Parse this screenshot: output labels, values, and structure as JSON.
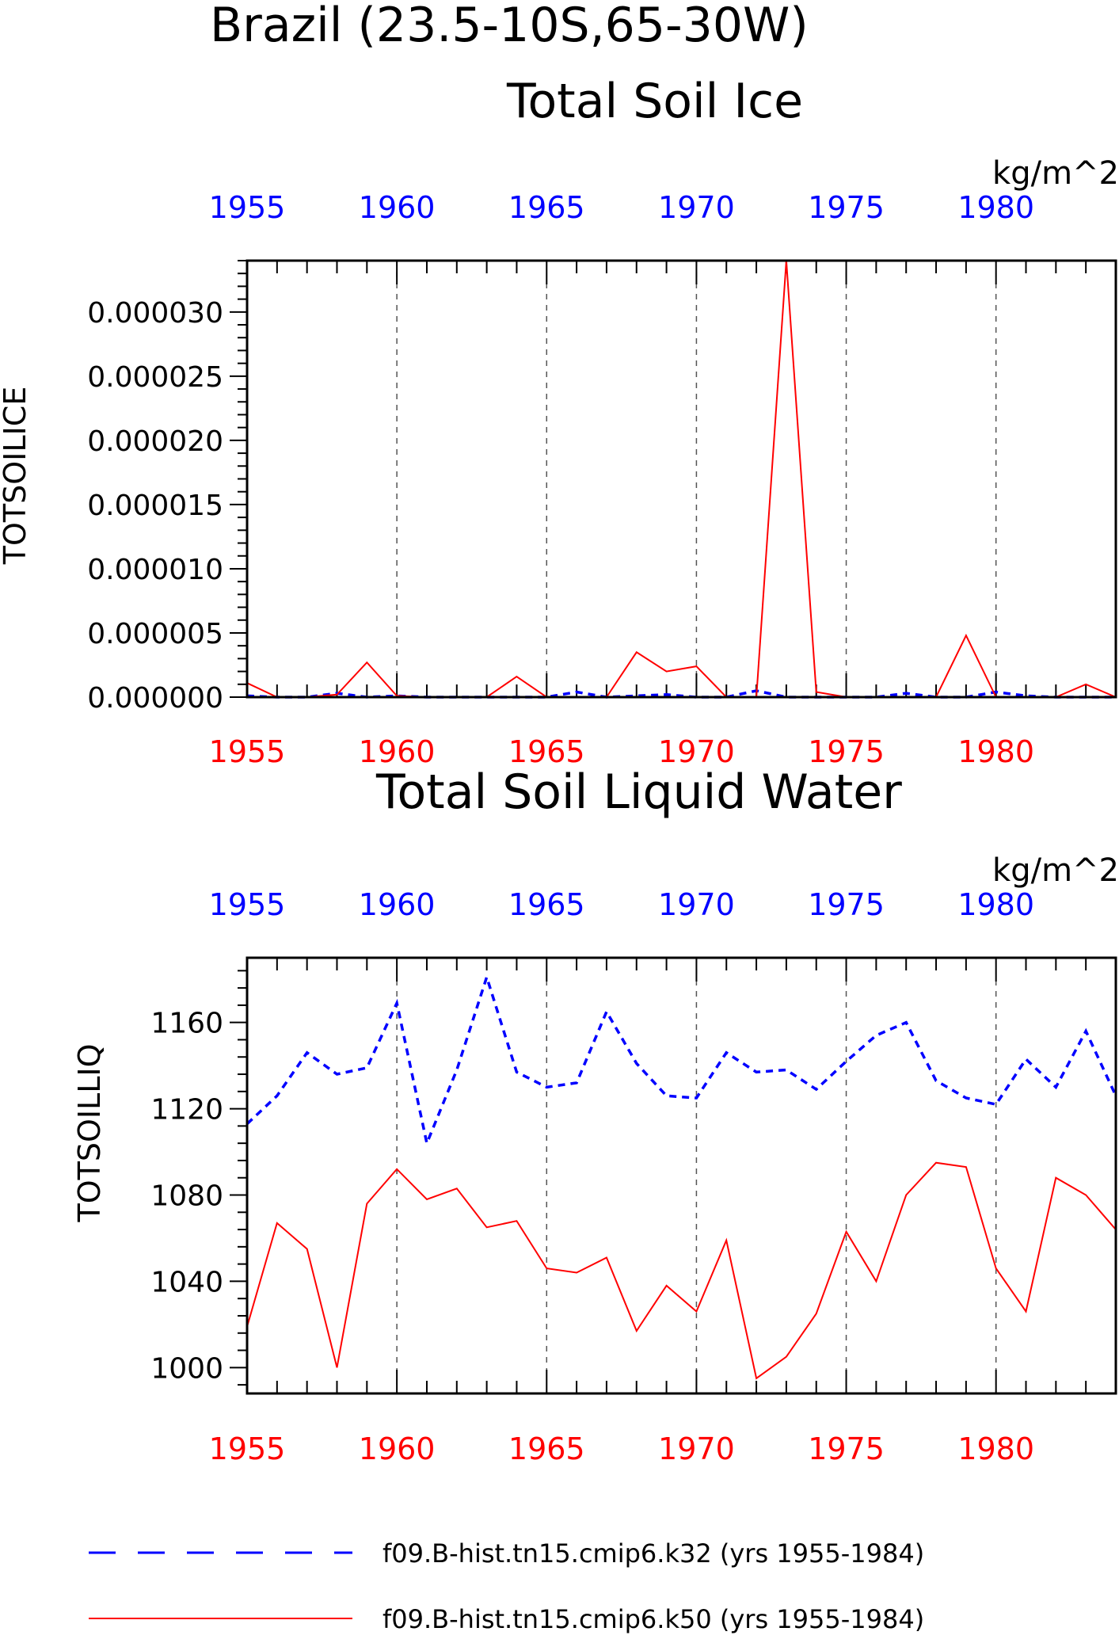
{
  "title": "Brazil (23.5-10S,65-30W)",
  "colors": {
    "k32": "#0000ff",
    "k50": "#ff0000",
    "frame": "#000000",
    "grid": "#555555"
  },
  "legend": [
    {
      "name": "f09.B-hist.tn15.cmip6.k32 (yrs 1955-1984)",
      "color": "#0000ff",
      "style": "dashed"
    },
    {
      "name": "f09.B-hist.tn15.cmip6.k50 (yrs 1955-1984)",
      "color": "#ff0000",
      "style": "solid"
    }
  ],
  "chart_data": [
    {
      "type": "line",
      "title": "Total Soil Ice",
      "ylabel": "TOTSOILICE",
      "units": "kg/m^2",
      "x_ticks": [
        1955,
        1960,
        1965,
        1970,
        1975,
        1980
      ],
      "y_tick_labels": [
        "0.000000",
        "0.000005",
        "0.000010",
        "0.000015",
        "0.000020",
        "0.000025",
        "0.000030"
      ],
      "y_ticks": [
        0,
        5e-06,
        1e-05,
        1.5e-05,
        2e-05,
        2.5e-05,
        3e-05
      ],
      "xlim": [
        1955,
        1984
      ],
      "ylim": [
        0,
        3.4e-05
      ],
      "grid": "vertical dashed at major x ticks",
      "series": [
        {
          "name": "f09.B-hist.tn15.cmip6.k32 (yrs 1955-1984)",
          "years": [
            1955,
            1956,
            1957,
            1958,
            1959,
            1960,
            1961,
            1962,
            1963,
            1964,
            1965,
            1966,
            1967,
            1968,
            1969,
            1970,
            1971,
            1972,
            1973,
            1974,
            1975,
            1976,
            1977,
            1978,
            1979,
            1980,
            1981,
            1982,
            1983,
            1984
          ],
          "values": [
            1e-07,
            0,
            0,
            3e-07,
            0,
            1e-07,
            0,
            0,
            0,
            0,
            0,
            4e-07,
            0,
            1e-07,
            2e-07,
            0,
            0,
            5e-07,
            0,
            0,
            0,
            0,
            3e-07,
            0,
            0,
            4e-07,
            1e-07,
            0,
            0,
            0
          ]
        },
        {
          "name": "f09.B-hist.tn15.cmip6.k50 (yrs 1955-1984)",
          "years": [
            1955,
            1956,
            1957,
            1958,
            1959,
            1960,
            1961,
            1962,
            1963,
            1964,
            1965,
            1966,
            1967,
            1968,
            1969,
            1970,
            1971,
            1972,
            1973,
            1974,
            1975,
            1976,
            1977,
            1978,
            1979,
            1980,
            1981,
            1982,
            1983,
            1984
          ],
          "values": [
            1.1e-06,
            0,
            0,
            2e-07,
            2.7e-06,
            1e-07,
            0,
            0,
            0,
            1.6e-06,
            0,
            0,
            0,
            3.5e-06,
            2e-06,
            2.4e-06,
            0,
            0,
            3.4e-05,
            4e-07,
            0,
            0,
            0,
            0,
            4.8e-06,
            0,
            0,
            0,
            1e-06,
            0
          ]
        }
      ]
    },
    {
      "type": "line",
      "title": "Total Soil Liquid Water",
      "ylabel": "TOTSOILLIQ",
      "units": "kg/m^2",
      "x_ticks": [
        1955,
        1960,
        1965,
        1970,
        1975,
        1980
      ],
      "y_tick_labels": [
        "1000",
        "1040",
        "1080",
        "1120",
        "1160"
      ],
      "y_ticks": [
        1000,
        1040,
        1080,
        1120,
        1160
      ],
      "xlim": [
        1955,
        1984
      ],
      "ylim": [
        988,
        1190
      ],
      "grid": "vertical dashed at major x ticks",
      "series": [
        {
          "name": "f09.B-hist.tn15.cmip6.k32 (yrs 1955-1984)",
          "years": [
            1955,
            1956,
            1957,
            1958,
            1959,
            1960,
            1961,
            1962,
            1963,
            1964,
            1965,
            1966,
            1967,
            1968,
            1969,
            1970,
            1971,
            1972,
            1973,
            1974,
            1975,
            1976,
            1977,
            1978,
            1979,
            1980,
            1981,
            1982,
            1983,
            1984
          ],
          "values": [
            1113,
            1126,
            1146,
            1136,
            1139,
            1169,
            1104,
            1138,
            1181,
            1137,
            1130,
            1132,
            1165,
            1141,
            1126,
            1125,
            1146,
            1137,
            1138,
            1129,
            1142,
            1154,
            1160,
            1133,
            1125,
            1122,
            1143,
            1130,
            1156,
            1126
          ]
        },
        {
          "name": "f09.B-hist.tn15.cmip6.k50 (yrs 1955-1984)",
          "years": [
            1955,
            1956,
            1957,
            1958,
            1959,
            1960,
            1961,
            1962,
            1963,
            1964,
            1965,
            1966,
            1967,
            1968,
            1969,
            1970,
            1971,
            1972,
            1973,
            1974,
            1975,
            1976,
            1977,
            1978,
            1979,
            1980,
            1981,
            1982,
            1983,
            1984
          ],
          "values": [
            1019,
            1067,
            1055,
            1000,
            1076,
            1092,
            1078,
            1083,
            1065,
            1068,
            1046,
            1044,
            1051,
            1017,
            1038,
            1026,
            1059,
            995,
            1005,
            1025,
            1063,
            1040,
            1080,
            1095,
            1093,
            1046,
            1026,
            1088,
            1080,
            1064
          ]
        }
      ]
    }
  ]
}
